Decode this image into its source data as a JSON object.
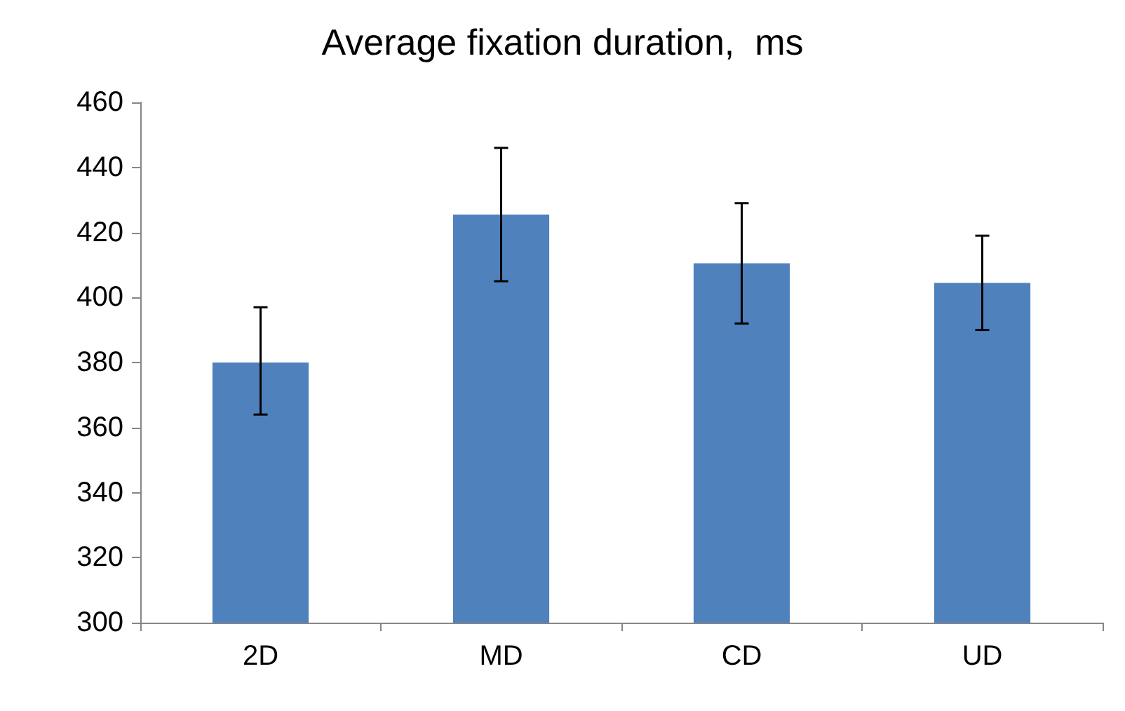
{
  "chart_data": {
    "type": "bar",
    "title": "Average fixation duration,  ms",
    "categories": [
      "2D",
      "MD",
      "CD",
      "UD"
    ],
    "values": [
      380,
      425.5,
      410.5,
      404.5
    ],
    "errors": [
      [
        364,
        397
      ],
      [
        405,
        446
      ],
      [
        392,
        429
      ],
      [
        390,
        419
      ]
    ],
    "color": "#4f81bd",
    "ylim": [
      300,
      460
    ],
    "yticks": [
      300,
      320,
      340,
      360,
      380,
      400,
      420,
      440,
      460
    ],
    "grid": false
  }
}
